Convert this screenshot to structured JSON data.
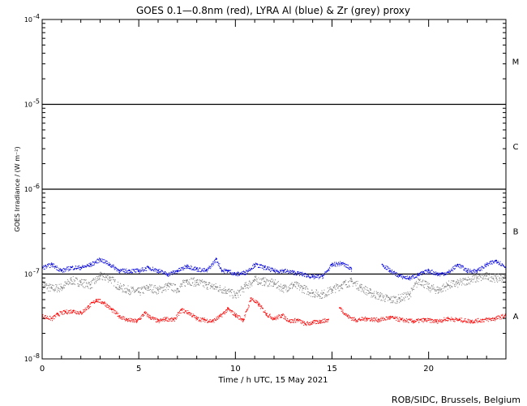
{
  "chart_data": {
    "type": "scatter",
    "title": "GOES 0.1—0.8nm (red), LYRA Al (blue) & Zr (grey) proxy",
    "xlabel": "Time / h UTC, 15 May 2021",
    "ylabel": "GOES Irradiance / (W m⁻²)",
    "xlim": [
      0,
      24
    ],
    "ylim": [
      1e-08,
      0.0001
    ],
    "yscale": "log",
    "x_ticks": [
      0,
      5,
      10,
      15,
      20
    ],
    "x_tick_labels": [
      "0",
      "5",
      "10",
      "15",
      "20"
    ],
    "y_ticks": [
      {
        "value": 1e-08,
        "base": "10",
        "exp": "-8"
      },
      {
        "value": 1e-07,
        "base": "10",
        "exp": "-7"
      },
      {
        "value": 1e-06,
        "base": "10",
        "exp": "-6"
      },
      {
        "value": 1e-05,
        "base": "10",
        "exp": "-5"
      },
      {
        "value": 0.0001,
        "base": "10",
        "exp": "-4"
      }
    ],
    "class_lines": [
      1e-07,
      1e-06,
      1e-05
    ],
    "flare_classes": [
      {
        "label": "A",
        "value": 3.2e-08
      },
      {
        "label": "B",
        "value": 3.2e-07
      },
      {
        "label": "C",
        "value": 3.2e-06
      },
      {
        "label": "M",
        "value": 3.2e-05
      }
    ],
    "series": [
      {
        "color": "#ff0000",
        "segments": [
          [
            0,
            14.8
          ],
          [
            15.4,
            24
          ]
        ],
        "x": [
          0,
          0.5,
          0.8,
          1.2,
          1.6,
          2.0,
          2.4,
          2.8,
          3.2,
          3.6,
          4.0,
          4.4,
          4.9,
          5.3,
          5.6,
          6.0,
          6.4,
          6.8,
          7.2,
          7.6,
          8.0,
          8.4,
          8.8,
          9.2,
          9.6,
          10.0,
          10.4,
          10.8,
          11.2,
          11.6,
          12.0,
          12.4,
          12.8,
          13.2,
          13.6,
          14.0,
          14.4,
          14.8,
          15.4,
          15.8,
          16.2,
          16.8,
          17.4,
          18.0,
          18.6,
          19.2,
          19.8,
          20.4,
          21.0,
          21.6,
          22.2,
          22.8,
          23.4,
          24.0
        ],
        "y": [
          3.2e-08,
          3e-08,
          3.4e-08,
          3.6e-08,
          3.7e-08,
          3.5e-08,
          4.2e-08,
          5e-08,
          4.6e-08,
          3.8e-08,
          3.2e-08,
          2.9e-08,
          2.8e-08,
          3.5e-08,
          3.1e-08,
          2.8e-08,
          3e-08,
          2.9e-08,
          3.8e-08,
          3.5e-08,
          3e-08,
          2.9e-08,
          2.8e-08,
          3.2e-08,
          3.9e-08,
          3.3e-08,
          2.9e-08,
          5.2e-08,
          4.4e-08,
          3.4e-08,
          3e-08,
          3.3e-08,
          2.8e-08,
          2.9e-08,
          2.6e-08,
          2.7e-08,
          2.8e-08,
          2.9e-08,
          4e-08,
          3.2e-08,
          2.9e-08,
          3e-08,
          2.9e-08,
          3.1e-08,
          2.9e-08,
          2.8e-08,
          2.9e-08,
          2.8e-08,
          3e-08,
          2.9e-08,
          2.8e-08,
          2.9e-08,
          3e-08,
          3.3e-08
        ]
      },
      {
        "color": "#0000dd",
        "segments": [
          [
            0,
            16.0
          ],
          [
            17.6,
            24
          ]
        ],
        "x": [
          0,
          0.5,
          1.0,
          1.5,
          2.0,
          2.5,
          3.0,
          3.5,
          4.0,
          4.5,
          5.0,
          5.5,
          6.0,
          6.5,
          7.0,
          7.5,
          8.0,
          8.5,
          9.0,
          9.3,
          9.6,
          10.0,
          10.5,
          11.0,
          11.5,
          12.0,
          12.5,
          13.0,
          13.5,
          14.0,
          14.5,
          15.0,
          15.5,
          16.0,
          17.6,
          18.0,
          18.5,
          19.0,
          19.5,
          20.0,
          20.5,
          21.0,
          21.5,
          22.0,
          22.5,
          23.0,
          23.5,
          24.0
        ],
        "y": [
          1.2e-07,
          1.3e-07,
          1.1e-07,
          1.2e-07,
          1.2e-07,
          1.3e-07,
          1.5e-07,
          1.3e-07,
          1.1e-07,
          1.1e-07,
          1.1e-07,
          1.2e-07,
          1.1e-07,
          1e-07,
          1.1e-07,
          1.25e-07,
          1.15e-07,
          1.1e-07,
          1.5e-07,
          1.1e-07,
          1.1e-07,
          1e-07,
          1.05e-07,
          1.3e-07,
          1.2e-07,
          1.1e-07,
          1.1e-07,
          1.05e-07,
          1e-07,
          9.3e-08,
          9.5e-08,
          1.3e-07,
          1.35e-07,
          1.15e-07,
          1.3e-07,
          1.1e-07,
          9.5e-08,
          9e-08,
          1e-07,
          1.1e-07,
          1e-07,
          1.05e-07,
          1.3e-07,
          1.1e-07,
          1.1e-07,
          1.3e-07,
          1.45e-07,
          1.2e-07
        ]
      },
      {
        "color": "#808080",
        "segments": [
          [
            0,
            24
          ]
        ],
        "x": [
          0,
          0.5,
          1.0,
          1.5,
          2.0,
          2.5,
          3.0,
          3.5,
          4.0,
          4.5,
          5.0,
          5.5,
          6.0,
          6.5,
          7.0,
          7.5,
          8.0,
          8.5,
          9.0,
          9.5,
          10.0,
          10.5,
          11.0,
          11.5,
          12.0,
          12.5,
          13.0,
          13.5,
          14.0,
          14.5,
          15.0,
          15.5,
          16.0,
          16.5,
          17.0,
          17.5,
          18.0,
          18.5,
          19.0,
          19.5,
          20.0,
          20.5,
          21.0,
          21.5,
          22.0,
          22.5,
          23.0,
          23.5,
          24.0
        ],
        "y": [
          7.5e-08,
          6.8e-08,
          7e-08,
          8.5e-08,
          8e-08,
          7.5e-08,
          9.5e-08,
          9e-08,
          7e-08,
          6.5e-08,
          6.2e-08,
          7e-08,
          6.5e-08,
          7.3e-08,
          6.7e-08,
          8.5e-08,
          8e-08,
          7.5e-08,
          7e-08,
          6.5e-08,
          5.6e-08,
          7.2e-08,
          8.6e-08,
          8.2e-08,
          7.8e-08,
          6.8e-08,
          7.5e-08,
          6.8e-08,
          6e-08,
          5.8e-08,
          6.6e-08,
          7.5e-08,
          8.2e-08,
          7e-08,
          6e-08,
          5.5e-08,
          5e-08,
          5.2e-08,
          5.8e-08,
          8.6e-08,
          7e-08,
          6.5e-08,
          7.5e-08,
          7.8e-08,
          8.5e-08,
          9e-08,
          9.5e-08,
          9e-08,
          9.2e-08
        ]
      }
    ]
  },
  "credit": "ROB/SIDC, Brussels, Belgium"
}
